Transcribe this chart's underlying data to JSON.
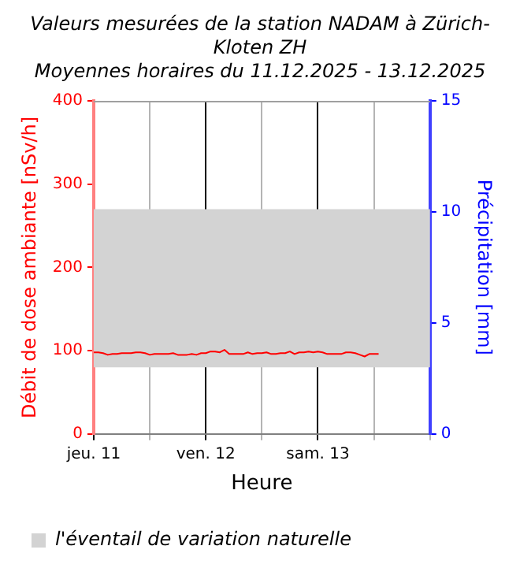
{
  "chart_data": {
    "type": "line",
    "title": "Valeurs mesurées de la station NADAM à Zürich-Kloten ZH",
    "subtitle": "Moyennes horaires du 11.12.2025 - 13.12.2025",
    "xlabel": "Heure",
    "ylabel": "Débit de dose ambiante [nSv/h]",
    "y2label": "Précipitation [mm]",
    "x": [
      "2025-12-11T00:00",
      "2025-12-11T01:00",
      "2025-12-11T02:00",
      "2025-12-11T03:00",
      "2025-12-11T04:00",
      "2025-12-11T05:00",
      "2025-12-11T06:00",
      "2025-12-11T07:00",
      "2025-12-11T08:00",
      "2025-12-11T09:00",
      "2025-12-11T10:00",
      "2025-12-11T11:00",
      "2025-12-11T12:00",
      "2025-12-11T13:00",
      "2025-12-11T14:00",
      "2025-12-11T15:00",
      "2025-12-11T16:00",
      "2025-12-11T17:00",
      "2025-12-11T18:00",
      "2025-12-11T19:00",
      "2025-12-11T20:00",
      "2025-12-11T21:00",
      "2025-12-11T22:00",
      "2025-12-11T23:00",
      "2025-12-12T00:00",
      "2025-12-12T01:00",
      "2025-12-12T02:00",
      "2025-12-12T03:00",
      "2025-12-12T04:00",
      "2025-12-12T05:00",
      "2025-12-12T06:00",
      "2025-12-12T07:00",
      "2025-12-12T08:00",
      "2025-12-12T09:00",
      "2025-12-12T10:00",
      "2025-12-12T11:00",
      "2025-12-12T12:00",
      "2025-12-12T13:00",
      "2025-12-12T14:00",
      "2025-12-12T15:00",
      "2025-12-12T16:00",
      "2025-12-12T17:00",
      "2025-12-12T18:00",
      "2025-12-12T19:00",
      "2025-12-12T20:00",
      "2025-12-12T21:00",
      "2025-12-12T22:00",
      "2025-12-12T23:00",
      "2025-12-13T00:00",
      "2025-12-13T01:00",
      "2025-12-13T02:00",
      "2025-12-13T03:00",
      "2025-12-13T04:00",
      "2025-12-13T05:00",
      "2025-12-13T06:00",
      "2025-12-13T07:00",
      "2025-12-13T08:00",
      "2025-12-13T09:00",
      "2025-12-13T10:00",
      "2025-12-13T11:00",
      "2025-12-13T12:00",
      "2025-12-13T13:00"
    ],
    "series": [
      {
        "color": "#ff0000",
        "values": [
          98,
          98,
          97,
          95,
          96,
          96,
          97,
          97,
          97,
          98,
          98,
          97,
          95,
          96,
          96,
          96,
          96,
          97,
          95,
          95,
          95,
          96,
          95,
          97,
          97,
          99,
          99,
          98,
          101,
          96,
          96,
          96,
          96,
          98,
          96,
          97,
          97,
          98,
          96,
          96,
          97,
          97,
          99,
          96,
          98,
          98,
          99,
          98,
          99,
          98,
          96,
          96,
          96,
          96,
          98,
          98,
          97,
          95,
          93,
          96,
          96,
          96
        ]
      }
    ],
    "xlim": [
      "2025-12-11T00:00",
      "2025-12-14T00:00"
    ],
    "xticks": [
      {
        "value": "2025-12-11T00:00",
        "label": "jeu. 11"
      },
      {
        "value": "2025-12-11T12:00",
        "label": null
      },
      {
        "value": "2025-12-12T00:00",
        "label": "ven. 12"
      },
      {
        "value": "2025-12-12T12:00",
        "label": null
      },
      {
        "value": "2025-12-13T00:00",
        "label": "sam. 13"
      },
      {
        "value": "2025-12-13T12:00",
        "label": null
      },
      {
        "value": "2025-12-14T00:00",
        "label": null
      }
    ],
    "ylim": [
      0,
      400
    ],
    "yticks": [
      0,
      100,
      200,
      300,
      400
    ],
    "y2lim": [
      0,
      15
    ],
    "y2ticks": [
      0,
      5,
      10,
      15
    ],
    "bands": [
      {
        "axis": "y",
        "from": 80,
        "to": 270,
        "label": "l'éventail de variation naturelle",
        "color": "#d3d3d3"
      }
    ],
    "grid": "x",
    "legend": "bottom",
    "marker": "none",
    "line_style": "solid"
  }
}
